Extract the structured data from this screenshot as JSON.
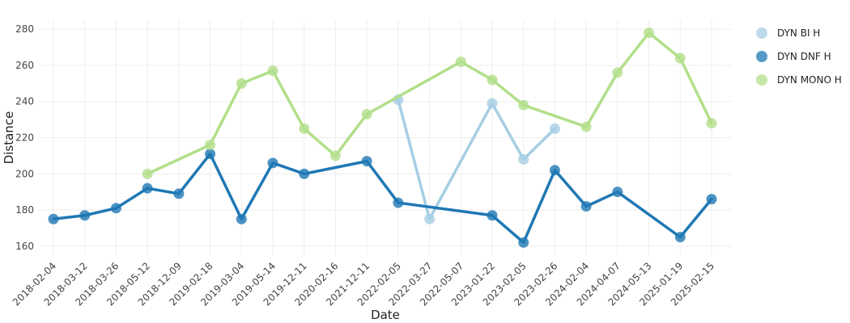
{
  "chart_data": {
    "type": "line",
    "title": "",
    "xlabel": "Date",
    "ylabel": "Distance",
    "ylim": [
      155,
      285
    ],
    "yticks": [
      160,
      180,
      200,
      220,
      240,
      260,
      280
    ],
    "grid": true,
    "legend_position": "right",
    "categories": [
      "2018-02-04",
      "2018-03-12",
      "2018-03-26",
      "2018-05-12",
      "2018-12-09",
      "2019-02-18",
      "2019-03-04",
      "2019-05-14",
      "2019-12-11",
      "2020-02-16",
      "2021-12-11",
      "2022-02-05",
      "2022-03-27",
      "2022-05-07",
      "2023-01-22",
      "2023-02-05",
      "2023-02-26",
      "2024-02-04",
      "2024-04-07",
      "2024-05-13",
      "2025-01-19",
      "2025-02-15"
    ],
    "series": [
      {
        "name": "DYN BI H",
        "color": "#a6cee3",
        "points": [
          {
            "x": "2022-02-05",
            "y": 241
          },
          {
            "x": "2022-03-27",
            "y": 175
          },
          {
            "x": "2023-01-22",
            "y": 239
          },
          {
            "x": "2023-02-05",
            "y": 208
          },
          {
            "x": "2023-02-26",
            "y": 225
          }
        ]
      },
      {
        "name": "DYN DNF H",
        "color": "#1f78b4",
        "points": [
          {
            "x": "2018-02-04",
            "y": 175
          },
          {
            "x": "2018-03-12",
            "y": 177
          },
          {
            "x": "2018-03-26",
            "y": 181
          },
          {
            "x": "2018-05-12",
            "y": 192
          },
          {
            "x": "2018-12-09",
            "y": 189
          },
          {
            "x": "2019-02-18",
            "y": 211
          },
          {
            "x": "2019-03-04",
            "y": 175
          },
          {
            "x": "2019-05-14",
            "y": 206
          },
          {
            "x": "2019-12-11",
            "y": 200
          },
          {
            "x": "2021-12-11",
            "y": 207
          },
          {
            "x": "2022-02-05",
            "y": 184
          },
          {
            "x": "2023-01-22",
            "y": 177
          },
          {
            "x": "2023-02-05",
            "y": 162
          },
          {
            "x": "2023-02-26",
            "y": 202
          },
          {
            "x": "2024-02-04",
            "y": 182
          },
          {
            "x": "2024-04-07",
            "y": 190
          },
          {
            "x": "2025-01-19",
            "y": 165
          },
          {
            "x": "2025-02-15",
            "y": 186
          }
        ]
      },
      {
        "name": "DYN MONO H",
        "color": "#b2df8a",
        "points": [
          {
            "x": "2018-05-12",
            "y": 200
          },
          {
            "x": "2019-02-18",
            "y": 216
          },
          {
            "x": "2019-03-04",
            "y": 250
          },
          {
            "x": "2019-05-14",
            "y": 257
          },
          {
            "x": "2019-12-11",
            "y": 225
          },
          {
            "x": "2020-02-16",
            "y": 210
          },
          {
            "x": "2021-12-11",
            "y": 233
          },
          {
            "x": "2022-05-07",
            "y": 262
          },
          {
            "x": "2023-01-22",
            "y": 252
          },
          {
            "x": "2023-02-05",
            "y": 238
          },
          {
            "x": "2024-02-04",
            "y": 226
          },
          {
            "x": "2024-04-07",
            "y": 256
          },
          {
            "x": "2024-05-13",
            "y": 278
          },
          {
            "x": "2025-01-19",
            "y": 264
          },
          {
            "x": "2025-02-15",
            "y": 228
          }
        ]
      }
    ]
  }
}
